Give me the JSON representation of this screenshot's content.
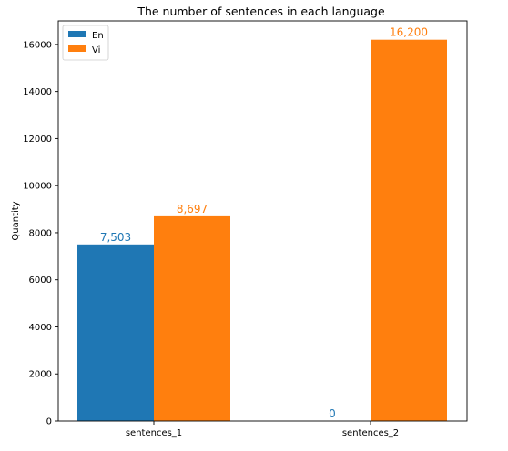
{
  "chart_data": {
    "type": "bar",
    "title": "The number of sentences in each language",
    "xlabel": "",
    "ylabel": "Quantity",
    "categories": [
      "sentences_1",
      "sentences_2"
    ],
    "series": [
      {
        "name": "En",
        "color": "#1f77b4",
        "values": [
          7503,
          0
        ],
        "labels": [
          "7,503",
          "0"
        ]
      },
      {
        "name": "Vi",
        "color": "#ff7f0e",
        "values": [
          8697,
          16200
        ],
        "labels": [
          "8,697",
          "16,200"
        ]
      }
    ],
    "ylim": [
      0,
      17000
    ],
    "yticks": [
      0,
      2000,
      4000,
      6000,
      8000,
      10000,
      12000,
      14000,
      16000
    ],
    "grid": false,
    "legend": "top-left"
  }
}
